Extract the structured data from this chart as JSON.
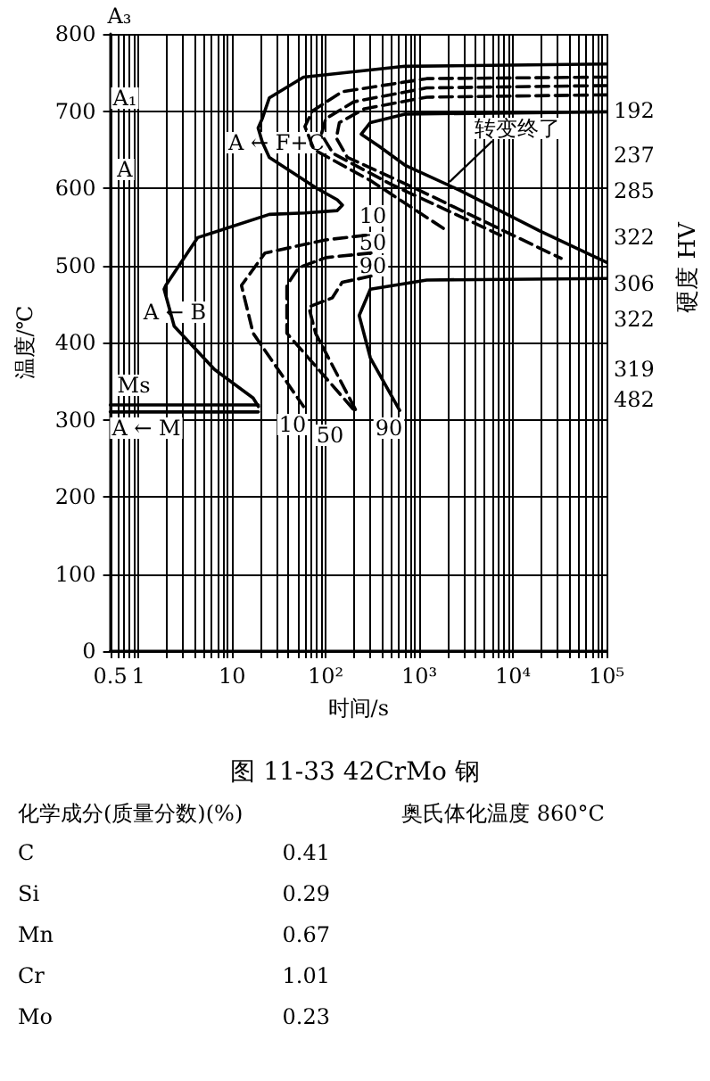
{
  "chart_data": {
    "type": "line",
    "title": "图 11-33   42CrMo 钢",
    "xlabel": "时间/s",
    "ylabel": "温度/℃",
    "y2label": "硬度 HV",
    "log": "x",
    "grid": true,
    "marker": "none",
    "xlim": [
      0.5,
      100000
    ],
    "xticks": [
      {
        "value": 0.5,
        "label": "0.5"
      },
      {
        "value": 0.6,
        "label": null
      },
      {
        "value": 0.7,
        "label": null
      },
      {
        "value": 0.8,
        "label": null
      },
      {
        "value": 0.9,
        "label": null
      },
      {
        "value": 1,
        "label": "1"
      },
      {
        "value": 2,
        "label": null
      },
      {
        "value": 3,
        "label": null
      },
      {
        "value": 4,
        "label": null
      },
      {
        "value": 5,
        "label": null
      },
      {
        "value": 6,
        "label": null
      },
      {
        "value": 7,
        "label": null
      },
      {
        "value": 8,
        "label": null
      },
      {
        "value": 9,
        "label": null
      },
      {
        "value": 10,
        "label": "10"
      },
      {
        "value": 20,
        "label": null
      },
      {
        "value": 30,
        "label": null
      },
      {
        "value": 40,
        "label": null
      },
      {
        "value": 50,
        "label": null
      },
      {
        "value": 60,
        "label": null
      },
      {
        "value": 70,
        "label": null
      },
      {
        "value": 80,
        "label": null
      },
      {
        "value": 90,
        "label": null
      },
      {
        "value": 100,
        "label": "10²"
      },
      {
        "value": 200,
        "label": null
      },
      {
        "value": 300,
        "label": null
      },
      {
        "value": 400,
        "label": null
      },
      {
        "value": 500,
        "label": null
      },
      {
        "value": 600,
        "label": null
      },
      {
        "value": 700,
        "label": null
      },
      {
        "value": 800,
        "label": null
      },
      {
        "value": 900,
        "label": null
      },
      {
        "value": 1000,
        "label": "10³"
      },
      {
        "value": 2000,
        "label": null
      },
      {
        "value": 3000,
        "label": null
      },
      {
        "value": 4000,
        "label": null
      },
      {
        "value": 5000,
        "label": null
      },
      {
        "value": 6000,
        "label": null
      },
      {
        "value": 7000,
        "label": null
      },
      {
        "value": 8000,
        "label": null
      },
      {
        "value": 9000,
        "label": null
      },
      {
        "value": 10000,
        "label": "10⁴"
      },
      {
        "value": 20000,
        "label": null
      },
      {
        "value": 30000,
        "label": null
      },
      {
        "value": 40000,
        "label": null
      },
      {
        "value": 50000,
        "label": null
      },
      {
        "value": 60000,
        "label": null
      },
      {
        "value": 70000,
        "label": null
      },
      {
        "value": 80000,
        "label": null
      },
      {
        "value": 90000,
        "label": null
      },
      {
        "value": 100000,
        "label": "10⁵"
      }
    ],
    "ylim": [
      0,
      800
    ],
    "yticks": [
      0,
      100,
      200,
      300,
      400,
      500,
      600,
      700,
      800
    ],
    "series": [
      {
        "color": "#000000",
        "line_style": "solid",
        "x": [
          100000,
          700,
          58,
          25,
          21,
          19,
          21,
          25,
          80,
          133,
          151,
          133,
          60,
          25,
          4.3,
          1.96,
          1.88,
          2.41,
          6.5,
          16.8,
          19.1
        ],
        "values": [
          761,
          758,
          744,
          717,
          690,
          678,
          660,
          640,
          600,
          585,
          578,
          571,
          568,
          566,
          536,
          474,
          469,
          421,
          365,
          328,
          317
        ]
      },
      {
        "color": "#000000",
        "line_style": "dashed",
        "x": [
          100000,
          1200,
          150,
          72,
          60,
          75,
          300,
          1807
        ],
        "values": [
          744,
          742,
          725,
          700,
          680,
          650,
          610,
          548
        ]
      },
      {
        "color": "#000000",
        "line_style": "dashed",
        "x": [
          100000,
          1200,
          200,
          100,
          90,
          120,
          500,
          7380
        ],
        "values": [
          733,
          730,
          712,
          690,
          670,
          645,
          605,
          539
        ]
      },
      {
        "color": "#000000",
        "line_style": "dashed",
        "x": [
          100000,
          1200,
          260,
          140,
          130,
          170,
          900,
          32700
        ],
        "values": [
          721,
          718,
          703,
          685,
          665,
          640,
          600,
          509
        ]
      },
      {
        "color": "#000000",
        "line_style": "solid",
        "x": [
          100000,
          700,
          300,
          240,
          375,
          700,
          2735,
          19100,
          100000
        ],
        "values": [
          699,
          696,
          685,
          670,
          654,
          630,
          597,
          545,
          504
        ]
      },
      {
        "color": "#000000",
        "line_style": "dashed",
        "x": [
          269,
          100,
          22.5,
          12.6,
          16.8,
          58
        ],
        "values": [
          539,
          533,
          516,
          474,
          412,
          317
        ]
      },
      {
        "color": "#000000",
        "line_style": "dashed",
        "x": [
          305,
          100,
          51.5,
          38.5,
          38.5,
          202
        ],
        "values": [
          516,
          510,
          497,
          474,
          412,
          312
        ]
      },
      {
        "color": "#000000",
        "line_style": "dashed",
        "x": [
          305,
          150,
          118,
          66,
          78,
          219
        ],
        "values": [
          486,
          478,
          458,
          446,
          412,
          308
        ]
      },
      {
        "color": "#000000",
        "line_style": "solid",
        "x": [
          100000,
          1200,
          300,
          228,
          300,
          617
        ],
        "values": [
          483,
          481,
          469,
          435,
          380,
          312
        ]
      },
      {
        "color": "#000000",
        "line_style": "solid",
        "x": [
          0.5,
          19.1
        ],
        "values": [
          319,
          319
        ]
      },
      {
        "color": "#000000",
        "line_style": "solid",
        "x": [
          0.5,
          19.1
        ],
        "values": [
          310,
          310
        ]
      }
    ],
    "annotations": [
      "A₃",
      "A₁",
      "A",
      "A ← F+C",
      "转变终了",
      "10",
      "50",
      "90",
      "A ← B",
      "Ms",
      "A ← M",
      "10",
      "50",
      "90",
      "192",
      "237",
      "285",
      "322",
      "306",
      "322",
      "319",
      "482",
      "化学成分(质量分数)(%)",
      "奥氏体化温度   860°C",
      "C",
      "0.41",
      "Si",
      "0.29",
      "Mn",
      "0.67",
      "Cr",
      "1.01",
      "Mo",
      "0.23"
    ]
  }
}
